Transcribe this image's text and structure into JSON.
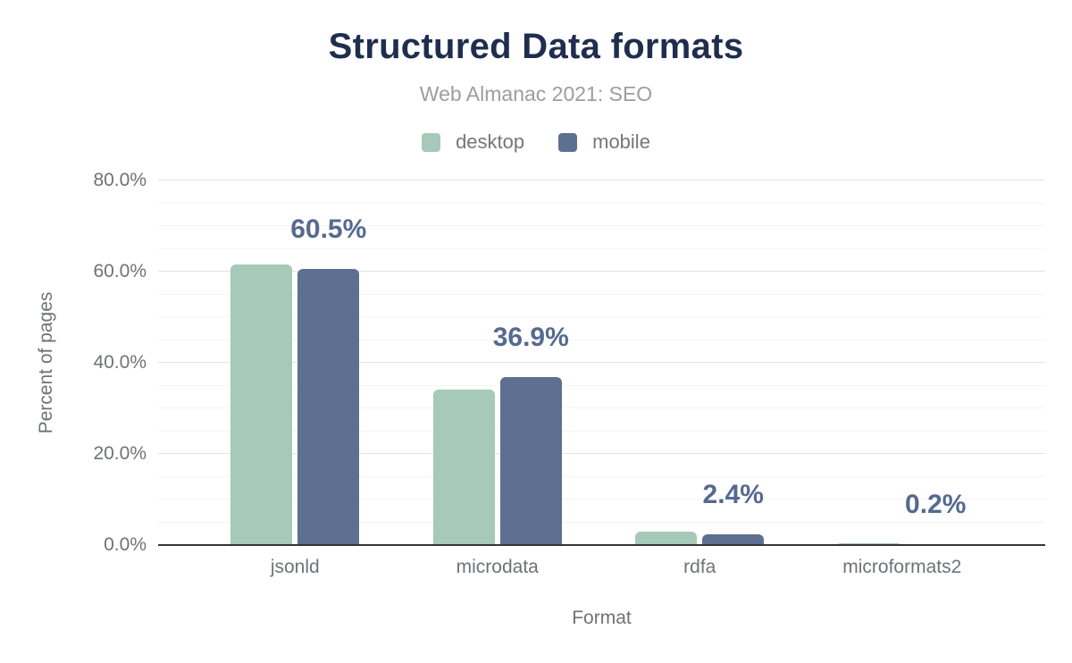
{
  "chart_data": {
    "type": "bar",
    "title": "Structured Data formats",
    "subtitle": "Web Almanac 2021: SEO",
    "xlabel": "Format",
    "ylabel": "Percent of pages",
    "categories": [
      "jsonld",
      "microdata",
      "rdfa",
      "microformats2"
    ],
    "series": [
      {
        "name": "desktop",
        "color": "#a6c9b9",
        "values": [
          61.6,
          34.1,
          2.9,
          0.3
        ]
      },
      {
        "name": "mobile",
        "color": "#5e7090",
        "values": [
          60.5,
          36.9,
          2.4,
          0.2
        ]
      }
    ],
    "bar_labels": {
      "labeled_series": "mobile",
      "texts": [
        "60.5%",
        "36.9%",
        "2.4%",
        "0.2%"
      ]
    },
    "ylim": [
      0,
      80
    ],
    "yticks": {
      "values": [
        0,
        20,
        40,
        60,
        80
      ],
      "labels": [
        "0.0%",
        "20.0%",
        "40.0%",
        "60.0%",
        "80.0%"
      ]
    },
    "minor_grid_step": 5,
    "grid": "horizontal",
    "legend_position": "top"
  },
  "colors": {
    "title_color": "#1f2e4e",
    "subtitle_color": "#9b9da0",
    "legend_text_color": "#74777a",
    "axis_text_color": "#6f7275",
    "bar_label_color": "#566a8f",
    "axis_line_color": "#333537",
    "grid_major_color": "#e3e3e3",
    "grid_minor_color": "#f4f4f4"
  }
}
